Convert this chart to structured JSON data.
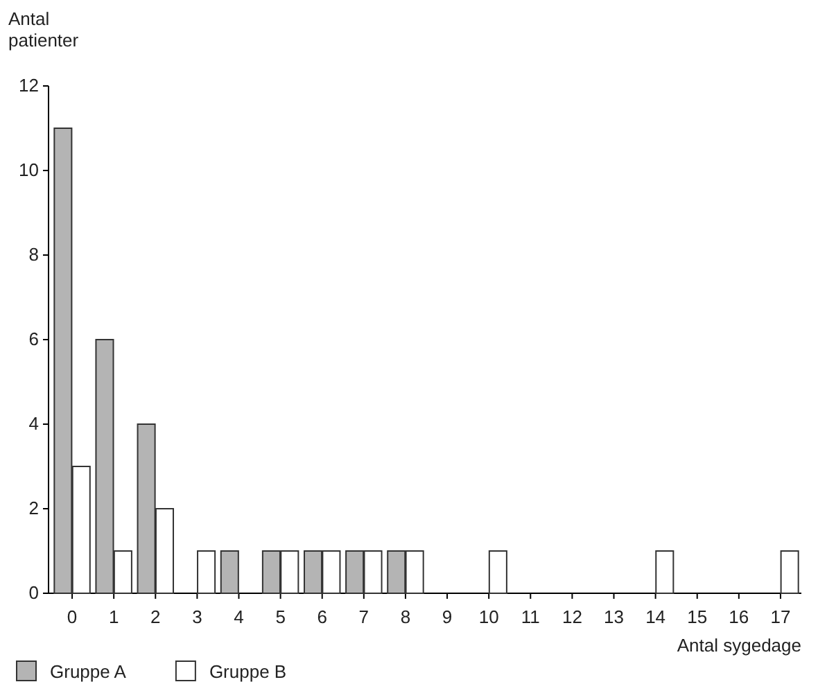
{
  "chart_data": {
    "type": "bar",
    "xlabel": "Antal sygedage",
    "ylabel": "Antal patienter",
    "categories": [
      "0",
      "1",
      "2",
      "3",
      "4",
      "5",
      "6",
      "7",
      "8",
      "9",
      "10",
      "11",
      "12",
      "13",
      "14",
      "15",
      "16",
      "17"
    ],
    "series": [
      {
        "name": "Gruppe A",
        "color": "#b4b4b4",
        "values": [
          11,
          6,
          4,
          0,
          1,
          1,
          1,
          1,
          1,
          0,
          0,
          0,
          0,
          0,
          0,
          0,
          0,
          0
        ]
      },
      {
        "name": "Gruppe B",
        "color": "#ffffff",
        "values": [
          3,
          1,
          2,
          1,
          0,
          1,
          1,
          1,
          1,
          0,
          1,
          0,
          0,
          0,
          1,
          0,
          0,
          1
        ]
      }
    ],
    "ylim": [
      0,
      12
    ],
    "yticks": [
      0,
      2,
      4,
      6,
      8,
      10,
      12
    ],
    "grid": false,
    "legend": "bottom left"
  }
}
